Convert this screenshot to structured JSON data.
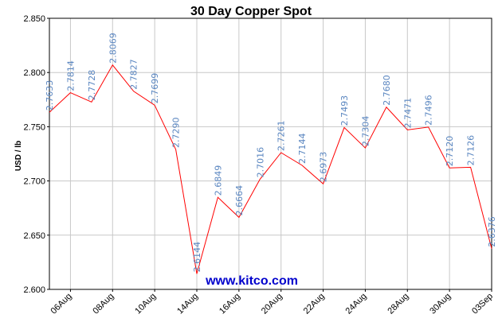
{
  "chart_data": {
    "type": "line",
    "title": "30 Day Copper Spot",
    "ylabel": "USD / lb",
    "xlabel": "",
    "ylim": [
      2.6,
      2.85
    ],
    "yticks": [
      "2.600",
      "2.650",
      "2.700",
      "2.750",
      "2.800",
      "2.850"
    ],
    "xticks": [
      "06Aug",
      "08Aug",
      "10Aug",
      "14Aug",
      "16Aug",
      "20Aug",
      "22Aug",
      "24Aug",
      "28Aug",
      "30Aug",
      "03Sep"
    ],
    "grid": true,
    "values": [
      2.7633,
      2.7814,
      2.7728,
      2.8069,
      2.7827,
      2.7699,
      2.729,
      2.6144,
      2.6849,
      2.6664,
      2.7016,
      2.7261,
      2.7144,
      2.6973,
      2.7493,
      2.7304,
      2.768,
      2.7471,
      2.7496,
      2.712,
      2.7126,
      2.6376
    ],
    "labels": [
      "2.7633",
      "2.7814",
      "2.7728",
      "2.8069",
      "2.7827",
      "2.7699",
      "2.7290",
      "2.6144",
      "2.6849",
      "2.6664",
      "2.7016",
      "2.7261",
      "2.7144",
      "2.6973",
      "2.7493",
      "2.7304",
      "2.7680",
      "2.7471",
      "2.7496",
      "2.7120",
      "2.7126",
      "2.6376"
    ],
    "line_color": "#ff0000",
    "label_color": "#5a86c0",
    "watermark": "www.kitco.com",
    "watermark_color": "#0000cc"
  }
}
